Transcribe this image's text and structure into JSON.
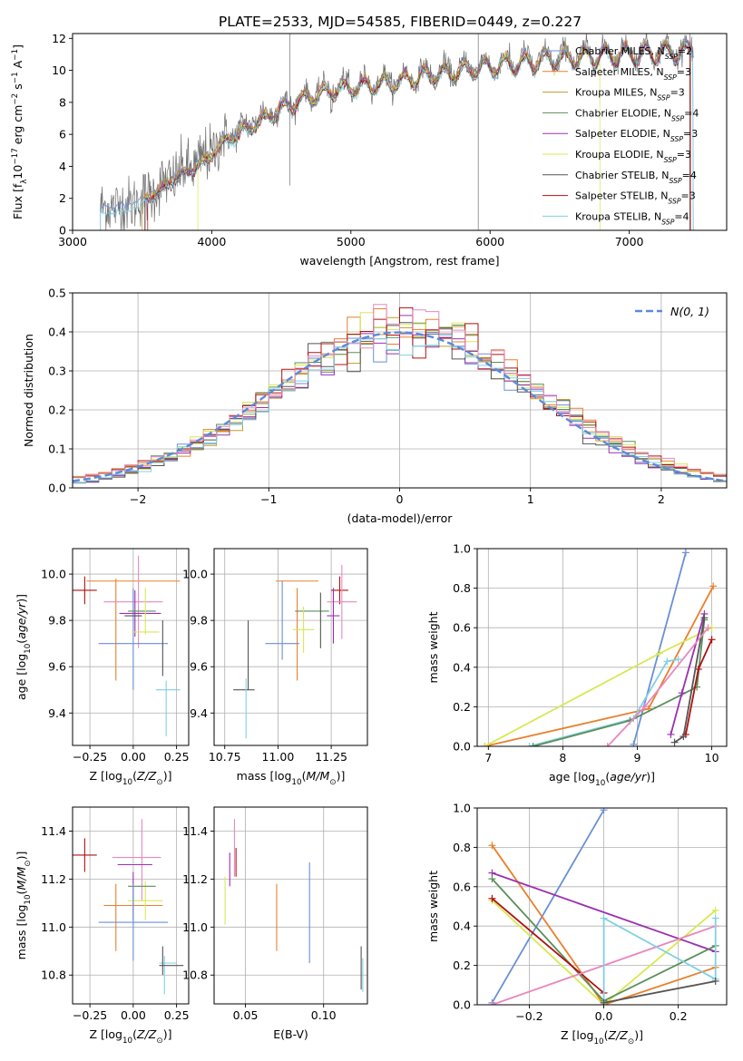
{
  "figure": {
    "title": "PLATE=2533, MJD=54585, FIBERID=0449, z=0.227"
  },
  "colors": {
    "chabrier_miles": "#6a8fd6",
    "salpeter_miles": "#e8802c",
    "kroupa_miles": "#c49a2c",
    "chabrier_elodie": "#5a8f5a",
    "salpeter_elodie": "#9b30b0",
    "kroupa_elodie": "#d8e850",
    "chabrier_stelib": "#555555",
    "salpeter_stelib": "#b01010",
    "kroupa_stelib": "#80d0e0",
    "pink": "#e888c0",
    "gaussian": "#5b8bd8"
  },
  "chart_data": [
    {
      "type": "line",
      "panel": "spectrum",
      "xlabel": "wavelength [Angstrom, rest frame]",
      "ylabel": "Flux [f_λ10^-17 erg cm^-2 s^-1 A^-1]",
      "xlim": [
        3000,
        7700
      ],
      "ylim": [
        0,
        12.3
      ],
      "xticks": [
        "3000",
        "4000",
        "5000",
        "6000",
        "7000"
      ],
      "yticks": [
        "0",
        "2",
        "4",
        "6",
        "8",
        "10",
        "12"
      ],
      "grid": false,
      "legend_placement": "top-right",
      "continuum": {
        "x": [
          3200,
          3400,
          3550,
          3700,
          3850,
          3950,
          4000,
          4100,
          4300,
          4500,
          4700,
          4900,
          5100,
          5300,
          5500,
          5700,
          5900,
          6100,
          6300,
          6500,
          6700,
          6900,
          7100,
          7300,
          7450
        ],
        "y": [
          1.4,
          1.6,
          2.2,
          3.2,
          4.0,
          4.5,
          5.0,
          5.8,
          6.8,
          7.8,
          8.5,
          9.0,
          9.2,
          9.4,
          9.8,
          10.0,
          10.3,
          10.5,
          10.7,
          10.9,
          11.0,
          11.1,
          11.2,
          11.3,
          11.4
        ]
      },
      "series": [
        {
          "name": "Chabrier MILES, N_SSP=2",
          "label_main": "Chabrier MILES, N",
          "label_sub": "SSP",
          "label_tail": "=2"
        },
        {
          "name": "Salpeter MILES, N_SSP=3",
          "label_main": "Salpeter MILES, N",
          "label_sub": "SSP",
          "label_tail": "=3"
        },
        {
          "name": "Kroupa MILES, N_SSP=3",
          "label_main": "Kroupa MILES, N",
          "label_sub": "SSP",
          "label_tail": "=3"
        },
        {
          "name": "Chabrier ELODIE, N_SSP=4",
          "label_main": "Chabrier ELODIE, N",
          "label_sub": "SSP",
          "label_tail": "=4"
        },
        {
          "name": "Salpeter ELODIE, N_SSP=3",
          "label_main": "Salpeter ELODIE, N",
          "label_sub": "SSP",
          "label_tail": "=3"
        },
        {
          "name": "Kroupa ELODIE, N_SSP=3",
          "label_main": "Kroupa ELODIE, N",
          "label_sub": "SSP",
          "label_tail": "=3"
        },
        {
          "name": "Chabrier STELIB, N_SSP=4",
          "label_main": "Chabrier STELIB, N",
          "label_sub": "SSP",
          "label_tail": "=4"
        },
        {
          "name": "Salpeter STELIB, N_SSP=3",
          "label_main": "Salpeter STELIB, N",
          "label_sub": "SSP",
          "label_tail": "=3"
        },
        {
          "name": "Kroupa STELIB, N_SSP=4",
          "label_main": "Kroupa STELIB, N",
          "label_sub": "SSP",
          "label_tail": "=4"
        }
      ]
    },
    {
      "type": "line",
      "panel": "residual-histogram",
      "xlabel": "(data-model)/error",
      "ylabel": "Normed distribution",
      "xlim": [
        -2.5,
        2.5
      ],
      "ylim": [
        0,
        0.5
      ],
      "xticks": [
        "−2",
        "−1",
        "0",
        "1",
        "2"
      ],
      "yticks": [
        "0.0",
        "0.1",
        "0.2",
        "0.3",
        "0.4",
        "0.5"
      ],
      "grid": true,
      "legend_placement": "top-right",
      "legend": "N(0,1)",
      "bin_width": 0.1
    },
    {
      "type": "scatter",
      "panel": "age-vs-Z",
      "xlabel": "Z [log10(Z/Z⊙)]",
      "ylabel": "age [log10(age/yr)]",
      "xlim": [
        -0.35,
        0.32
      ],
      "ylim": [
        9.26,
        10.11
      ],
      "xticks": [
        "−0.25",
        "0.00",
        "0.25"
      ],
      "yticks": [
        "9.4",
        "9.6",
        "9.8",
        "10.0"
      ],
      "grid": true,
      "points": [
        {
          "x": -0.28,
          "y": 9.93,
          "xerr": 0.07,
          "yerr": 0.06,
          "c": "salpeter_stelib"
        },
        {
          "x": 0.0,
          "y": 9.97,
          "xerr": 0.27,
          "yerr": 0.0,
          "c": "salpeter_miles"
        },
        {
          "x": -0.1,
          "y": 9.76,
          "xerr": 0.0,
          "yerr": 0.22,
          "c": "salpeter_miles"
        },
        {
          "x": 0.0,
          "y": 9.88,
          "xerr": 0.17,
          "yerr": 0.05,
          "c": "pink"
        },
        {
          "x": 0.03,
          "y": 9.88,
          "xerr": 0.0,
          "yerr": 0.2,
          "c": "pink"
        },
        {
          "x": 0.0,
          "y": 9.72,
          "xerr": 0.0,
          "yerr": 0.22,
          "c": "chabrier_miles"
        },
        {
          "x": 0.0,
          "y": 9.7,
          "xerr": 0.2,
          "yerr": 0.0,
          "c": "chabrier_miles"
        },
        {
          "x": 0.04,
          "y": 9.83,
          "xerr": 0.12,
          "yerr": 0.0,
          "c": "salpeter_elodie"
        },
        {
          "x": 0.01,
          "y": 9.83,
          "xerr": 0.0,
          "yerr": 0.1,
          "c": "salpeter_elodie"
        },
        {
          "x": 0.05,
          "y": 9.84,
          "xerr": 0.08,
          "yerr": 0.0,
          "c": "chabrier_elodie"
        },
        {
          "x": 0.07,
          "y": 9.75,
          "xerr": 0.08,
          "yerr": 0.0,
          "c": "kroupa_elodie"
        },
        {
          "x": 0.07,
          "y": 9.84,
          "xerr": 0.0,
          "yerr": 0.1,
          "c": "kroupa_elodie"
        },
        {
          "x": 0.0,
          "y": 9.82,
          "xerr": 0.05,
          "yerr": 0.0,
          "c": "chabrier_stelib"
        },
        {
          "x": 0.17,
          "y": 9.68,
          "xerr": 0.0,
          "yerr": 0.12,
          "c": "chabrier_stelib"
        },
        {
          "x": 0.2,
          "y": 9.5,
          "xerr": 0.07,
          "yerr": 0.0,
          "c": "kroupa_stelib"
        },
        {
          "x": 0.19,
          "y": 9.42,
          "xerr": 0.0,
          "yerr": 0.12,
          "c": "kroupa_stelib"
        }
      ]
    },
    {
      "type": "scatter",
      "panel": "age-vs-mass",
      "xlabel": "mass [log10(M/M⊙)]",
      "ylabel": "",
      "xlim": [
        10.7,
        11.42
      ],
      "ylim": [
        9.26,
        10.11
      ],
      "xticks": [
        "10.75",
        "11.00",
        "11.25"
      ],
      "yticks": [
        "9.4",
        "9.6",
        "9.8",
        "10.0"
      ],
      "grid": true,
      "points": [
        {
          "x": 11.29,
          "y": 9.93,
          "xerr": 0.04,
          "yerr": 0.06,
          "c": "salpeter_stelib"
        },
        {
          "x": 11.09,
          "y": 9.97,
          "xerr": 0.1,
          "yerr": 0.0,
          "c": "salpeter_miles"
        },
        {
          "x": 11.09,
          "y": 9.74,
          "xerr": 0.0,
          "yerr": 0.2,
          "c": "salpeter_miles"
        },
        {
          "x": 11.3,
          "y": 9.88,
          "xerr": 0.07,
          "yerr": 0.16,
          "c": "pink"
        },
        {
          "x": 11.02,
          "y": 9.8,
          "xerr": 0.0,
          "yerr": 0.17,
          "c": "chabrier_miles"
        },
        {
          "x": 11.02,
          "y": 9.7,
          "xerr": 0.08,
          "yerr": 0.0,
          "c": "chabrier_miles"
        },
        {
          "x": 11.26,
          "y": 9.82,
          "xerr": 0.03,
          "yerr": 0.12,
          "c": "salpeter_elodie"
        },
        {
          "x": 11.16,
          "y": 9.84,
          "xerr": 0.08,
          "yerr": 0.0,
          "c": "chabrier_elodie"
        },
        {
          "x": 11.12,
          "y": 9.76,
          "xerr": 0.05,
          "yerr": 0.1,
          "c": "kroupa_elodie"
        },
        {
          "x": 11.2,
          "y": 9.8,
          "xerr": 0.0,
          "yerr": 0.12,
          "c": "chabrier_stelib"
        },
        {
          "x": 10.86,
          "y": 9.65,
          "xerr": 0.0,
          "yerr": 0.15,
          "c": "chabrier_stelib"
        },
        {
          "x": 10.84,
          "y": 9.5,
          "xerr": 0.05,
          "yerr": 0.0,
          "c": "chabrier_stelib"
        },
        {
          "x": 10.85,
          "y": 9.42,
          "xerr": 0.0,
          "yerr": 0.13,
          "c": "kroupa_stelib"
        }
      ]
    },
    {
      "type": "line",
      "panel": "mass-weight-vs-age",
      "xlabel": "age [log10(age/yr)]",
      "ylabel": "mass weight",
      "xlim": [
        6.85,
        10.2
      ],
      "ylim": [
        0,
        1.0
      ],
      "xticks": [
        "7",
        "8",
        "9",
        "10"
      ],
      "yticks": [
        "0.0",
        "0.2",
        "0.4",
        "0.6",
        "0.8",
        "1.0"
      ],
      "grid": true,
      "series": [
        {
          "c": "chabrier_miles",
          "x": [
            8.95,
            9.65
          ],
          "y": [
            0.01,
            0.98
          ]
        },
        {
          "c": "salpeter_miles",
          "x": [
            6.95,
            9.15,
            10.02
          ],
          "y": [
            0.0,
            0.19,
            0.81
          ]
        },
        {
          "c": "kroupa_elodie",
          "x": [
            6.95,
            9.3,
            10.0
          ],
          "y": [
            0.0,
            0.47,
            0.6
          ]
        },
        {
          "c": "kroupa_stelib",
          "x": [
            7.55,
            8.95,
            9.4,
            9.55
          ],
          "y": [
            0.0,
            0.14,
            0.43,
            0.44
          ]
        },
        {
          "c": "chabrier_elodie",
          "x": [
            7.6,
            8.9,
            9.8,
            9.9
          ],
          "y": [
            0.0,
            0.13,
            0.3,
            0.64
          ]
        },
        {
          "c": "salpeter_elodie",
          "x": [
            9.45,
            9.6,
            9.9
          ],
          "y": [
            0.06,
            0.27,
            0.67
          ]
        },
        {
          "c": "salpeter_stelib",
          "x": [
            9.65,
            9.82,
            10.0
          ],
          "y": [
            0.06,
            0.39,
            0.54
          ]
        },
        {
          "c": "chabrier_stelib",
          "x": [
            9.5,
            9.62,
            9.9
          ],
          "y": [
            0.02,
            0.05,
            0.65
          ]
        },
        {
          "c": "pink",
          "x": [
            8.6,
            9.1,
            9.95
          ],
          "y": [
            0.0,
            0.2,
            0.6
          ]
        }
      ]
    },
    {
      "type": "scatter",
      "panel": "mass-vs-Z",
      "xlabel": "Z [log10(Z/Z⊙)]",
      "ylabel": "mass [log10(M/M⊙)]",
      "xlim": [
        -0.35,
        0.32
      ],
      "ylim": [
        10.68,
        11.5
      ],
      "xticks": [
        "−0.25",
        "0.00",
        "0.25"
      ],
      "yticks": [
        "10.8",
        "11.0",
        "11.2",
        "11.4"
      ],
      "grid": true,
      "points": [
        {
          "x": -0.28,
          "y": 11.3,
          "xerr": 0.07,
          "yerr": 0.07,
          "c": "salpeter_stelib"
        },
        {
          "x": 0.02,
          "y": 11.29,
          "xerr": 0.14,
          "yerr": 0.0,
          "c": "pink"
        },
        {
          "x": 0.05,
          "y": 11.28,
          "xerr": 0.0,
          "yerr": 0.17,
          "c": "pink"
        },
        {
          "x": 0.01,
          "y": 11.26,
          "xerr": 0.1,
          "yerr": 0.0,
          "c": "salpeter_elodie"
        },
        {
          "x": 0.0,
          "y": 11.13,
          "xerr": 0.0,
          "yerr": 0.1,
          "c": "salpeter_elodie"
        },
        {
          "x": -0.1,
          "y": 11.04,
          "xerr": 0.0,
          "yerr": 0.14,
          "c": "salpeter_miles"
        },
        {
          "x": 0.0,
          "y": 11.09,
          "xerr": 0.17,
          "yerr": 0.0,
          "c": "salpeter_miles"
        },
        {
          "x": 0.07,
          "y": 11.11,
          "xerr": 0.1,
          "yerr": 0.0,
          "c": "kroupa_elodie"
        },
        {
          "x": 0.07,
          "y": 11.11,
          "xerr": 0.0,
          "yerr": 0.08,
          "c": "kroupa_elodie"
        },
        {
          "x": 0.05,
          "y": 11.17,
          "xerr": 0.08,
          "yerr": 0.0,
          "c": "chabrier_elodie"
        },
        {
          "x": 0.0,
          "y": 11.02,
          "xerr": 0.2,
          "yerr": 0.0,
          "c": "chabrier_miles"
        },
        {
          "x": 0.0,
          "y": 11.02,
          "xerr": 0.0,
          "yerr": 0.16,
          "c": "chabrier_miles"
        },
        {
          "x": 0.2,
          "y": 10.85,
          "xerr": 0.05,
          "yerr": 0.0,
          "c": "kroupa_stelib"
        },
        {
          "x": 0.18,
          "y": 10.8,
          "xerr": 0.0,
          "yerr": 0.08,
          "c": "kroupa_stelib"
        },
        {
          "x": 0.22,
          "y": 10.84,
          "xerr": 0.07,
          "yerr": 0.0,
          "c": "chabrier_stelib"
        },
        {
          "x": 0.17,
          "y": 10.86,
          "xerr": 0.0,
          "yerr": 0.06,
          "c": "chabrier_stelib"
        }
      ]
    },
    {
      "type": "scatter",
      "panel": "mass-vs-EBV",
      "xlabel": "E(B-V)",
      "ylabel": "",
      "xlim": [
        0.03,
        0.128
      ],
      "ylim": [
        10.68,
        11.5
      ],
      "xticks": [
        "0.05",
        "0.10"
      ],
      "yticks": [
        "10.8",
        "11.0",
        "11.2",
        "11.4"
      ],
      "grid": true,
      "points": [
        {
          "x": 0.037,
          "y": 11.11,
          "xerr": 0.0,
          "yerr": 0.1,
          "c": "kroupa_elodie"
        },
        {
          "x": 0.04,
          "y": 11.24,
          "xerr": 0.0,
          "yerr": 0.07,
          "c": "salpeter_elodie"
        },
        {
          "x": 0.043,
          "y": 11.33,
          "xerr": 0.0,
          "yerr": 0.12,
          "c": "pink"
        },
        {
          "x": 0.044,
          "y": 11.27,
          "xerr": 0.0,
          "yerr": 0.06,
          "c": "salpeter_stelib"
        },
        {
          "x": 0.07,
          "y": 11.04,
          "xerr": 0.0,
          "yerr": 0.14,
          "c": "salpeter_miles"
        },
        {
          "x": 0.091,
          "y": 11.06,
          "xerr": 0.0,
          "yerr": 0.21,
          "c": "chabrier_miles"
        },
        {
          "x": 0.124,
          "y": 10.83,
          "xerr": 0.0,
          "yerr": 0.09,
          "c": "chabrier_stelib"
        },
        {
          "x": 0.125,
          "y": 10.8,
          "xerr": 0.0,
          "yerr": 0.07,
          "c": "kroupa_stelib"
        }
      ]
    },
    {
      "type": "line",
      "panel": "mass-weight-vs-Z",
      "xlabel": "Z [log10(Z/Z⊙)]",
      "ylabel": "mass weight",
      "xlim": [
        -0.34,
        0.33
      ],
      "ylim": [
        0,
        1.0
      ],
      "xticks": [
        "−0.2",
        "0.0",
        "0.2"
      ],
      "yticks": [
        "0.0",
        "0.2",
        "0.4",
        "0.6",
        "0.8",
        "1.0"
      ],
      "grid": true,
      "series": [
        {
          "c": "chabrier_miles",
          "x": [
            -0.3,
            0.0
          ],
          "y": [
            0.01,
            0.99
          ]
        },
        {
          "c": "salpeter_miles",
          "x": [
            -0.3,
            0.0,
            0.3
          ],
          "y": [
            0.81,
            0.0,
            0.19
          ]
        },
        {
          "c": "kroupa_elodie",
          "x": [
            -0.3,
            0.0,
            0.3
          ],
          "y": [
            0.53,
            0.0,
            0.48
          ]
        },
        {
          "c": "salpeter_elodie",
          "x": [
            -0.3,
            0.3
          ],
          "y": [
            0.67,
            0.27
          ]
        },
        {
          "c": "chabrier_elodie",
          "x": [
            -0.3,
            0.0,
            0.3
          ],
          "y": [
            0.64,
            0.02,
            0.3
          ]
        },
        {
          "c": "salpeter_stelib",
          "x": [
            -0.3,
            0.0
          ],
          "y": [
            0.54,
            0.06
          ]
        },
        {
          "c": "pink",
          "x": [
            -0.3,
            0.3
          ],
          "y": [
            0.0,
            0.4
          ]
        },
        {
          "c": "kroupa_stelib",
          "x": [
            0.0,
            0.0,
            0.3,
            0.3
          ],
          "y": [
            0.0,
            0.44,
            0.13,
            0.44
          ]
        },
        {
          "c": "chabrier_stelib",
          "x": [
            0.0,
            0.3
          ],
          "y": [
            0.01,
            0.12
          ]
        }
      ]
    }
  ]
}
